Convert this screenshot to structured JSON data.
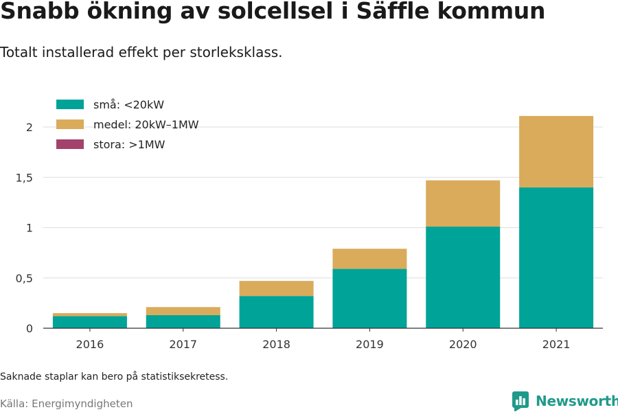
{
  "title": "Snabb ökning av solcellsel i Säffle kommun",
  "subtitle": "Totalt installerad effekt per storleksklass.",
  "note": "Saknade staplar kan bero på statistiksekretess.",
  "source": "Källa: Energimyndigheten",
  "brand": {
    "name": "Newsworthy",
    "icon": "bar-chart-logo-icon"
  },
  "colors": {
    "small": "#00a398",
    "medium": "#d9ab5b",
    "large": "#a3426b",
    "grid": "#dddddd",
    "axis": "#333333"
  },
  "chart_data": {
    "type": "bar",
    "stacked": true,
    "categories": [
      "2016",
      "2017",
      "2018",
      "2019",
      "2020",
      "2021"
    ],
    "series": [
      {
        "name": "små: <20kW",
        "color": "#00a398",
        "values": [
          0.12,
          0.13,
          0.32,
          0.59,
          1.01,
          1.4
        ]
      },
      {
        "name": "medel: 20kW–1MW",
        "color": "#d9ab5b",
        "values": [
          0.03,
          0.08,
          0.15,
          0.2,
          0.46,
          0.71
        ]
      },
      {
        "name": "stora: >1MW",
        "color": "#a3426b",
        "values": [
          0,
          0,
          0,
          0,
          0,
          0
        ]
      }
    ],
    "yticks": [
      0,
      0.5,
      1,
      1.5,
      2
    ],
    "ytick_labels": [
      "0",
      "0,5",
      "1",
      "1,5",
      "2"
    ],
    "ylim": [
      0,
      2.2
    ],
    "grid": true,
    "legend": "top-left"
  }
}
